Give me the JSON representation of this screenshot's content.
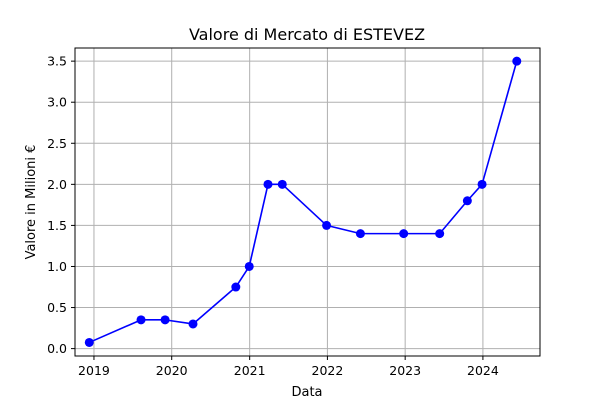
{
  "chart_data": {
    "type": "line",
    "title": "Valore di Mercato di ESTEVEZ",
    "xlabel": "Data",
    "ylabel": "Valore in Milioni €",
    "x_ticks": [
      "2019",
      "2020",
      "2021",
      "2022",
      "2023",
      "2024"
    ],
    "y_ticks": [
      "0.0",
      "0.5",
      "1.0",
      "1.5",
      "2.0",
      "2.5",
      "3.0",
      "3.5"
    ],
    "xlim": [
      "2018-10-04",
      "2024-09-25"
    ],
    "ylim": [
      -0.09,
      3.66
    ],
    "grid": true,
    "series": [
      {
        "color": "#0000ff",
        "marker": "circle",
        "points": [
          {
            "x": "2018-12-10",
            "y": 0.075
          },
          {
            "x": "2019-08-10",
            "y": 0.35
          },
          {
            "x": "2019-12-01",
            "y": 0.35
          },
          {
            "x": "2020-04-10",
            "y": 0.3
          },
          {
            "x": "2020-10-28",
            "y": 0.75
          },
          {
            "x": "2020-12-30",
            "y": 1.0
          },
          {
            "x": "2021-03-28",
            "y": 2.0
          },
          {
            "x": "2021-06-03",
            "y": 2.0
          },
          {
            "x": "2021-12-28",
            "y": 1.5
          },
          {
            "x": "2022-06-05",
            "y": 1.4
          },
          {
            "x": "2022-12-25",
            "y": 1.4
          },
          {
            "x": "2023-06-12",
            "y": 1.4
          },
          {
            "x": "2023-10-20",
            "y": 1.8
          },
          {
            "x": "2023-12-28",
            "y": 2.0
          },
          {
            "x": "2024-06-08",
            "y": 3.5
          }
        ]
      }
    ]
  }
}
